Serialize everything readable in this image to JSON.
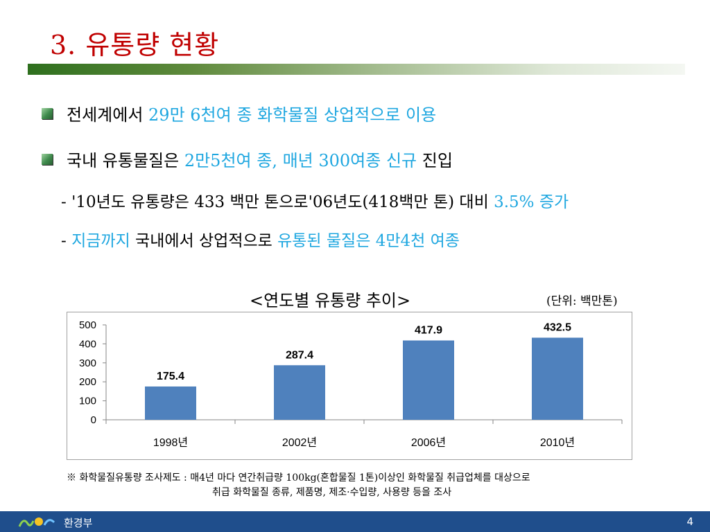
{
  "title": "3. 유통량 현황",
  "bullets": [
    {
      "pre": "전세계에서 ",
      "highlight": "29만 6천여 종 화학물질 상업적으로 이용",
      "post": ""
    },
    {
      "pre": "국내 유통물질은 ",
      "highlight": "2만5천여 종, 매년 300여종 신규",
      "post": " 진입"
    }
  ],
  "subs": [
    {
      "a": "- '10년도 유통량은 433 백만 톤으로'06년도(418백만 톤) 대비 ",
      "b": "3.5% 증가",
      "c": "",
      "d": ""
    },
    {
      "a": "- ",
      "b": "지금까지",
      "c": " 국내에서 상업적으로 ",
      "d": "유통된 물질은 4만4천 여종"
    }
  ],
  "chart_title": "<연도별 유통량 추이>",
  "unit_label": "(단위: 백만톤)",
  "chart_data": {
    "type": "bar",
    "categories": [
      "1998년",
      "2002년",
      "2006년",
      "2010년"
    ],
    "values": [
      175.4,
      287.4,
      417.9,
      432.5
    ],
    "ylim": [
      0,
      500
    ],
    "yticks": [
      0,
      100,
      200,
      300,
      400,
      500
    ],
    "title": "",
    "xlabel": "",
    "ylabel": "",
    "bar_color": "#4f81bd",
    "grid": false,
    "legend": "none"
  },
  "note": {
    "line1": "※ 화학물질유통량 조사제도 : 매4년 마다 연간취급량 100kg(혼합물질 1톤)이상인 화학물질 취급업체를 대상으로",
    "line2": "취급 화학물질 종류, 제품명, 제조·수입량, 사용량 등을 조사"
  },
  "footer": {
    "org": "환경부",
    "page": "4"
  },
  "colors": {
    "title": "#c00000",
    "highlight": "#1fa7e0",
    "footer_bg": "#1f4e8c"
  }
}
